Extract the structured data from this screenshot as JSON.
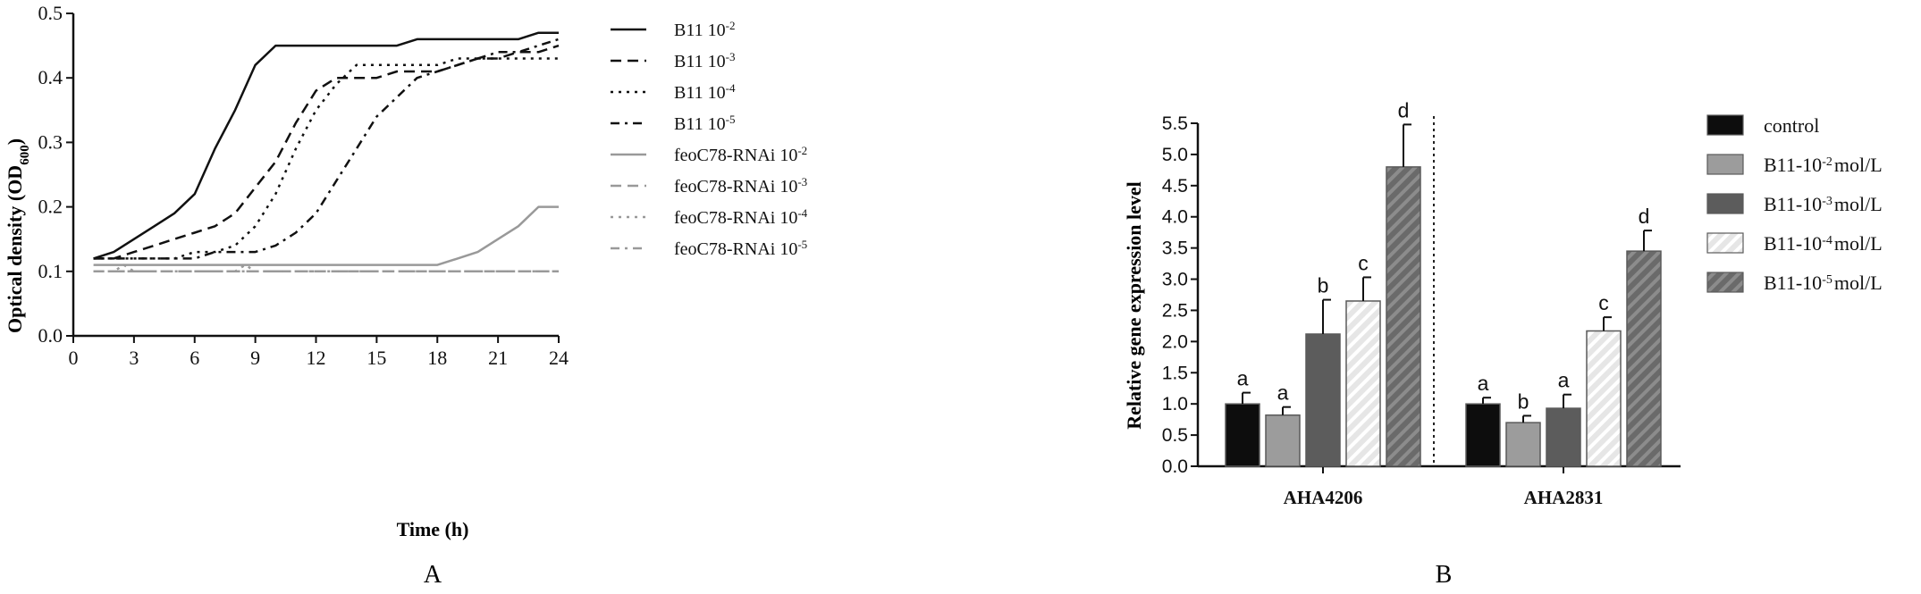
{
  "chart_data": [
    {
      "id": "A",
      "type": "line",
      "panel_label": "A",
      "title": "",
      "xlabel": "Time (h)",
      "ylabel_text": "Optical density (OD",
      "ylabel_sub": "600",
      "ylabel_close": ")",
      "xlim": [
        0,
        24
      ],
      "ylim": [
        0,
        0.5
      ],
      "xticks": [
        0,
        3,
        6,
        9,
        12,
        15,
        18,
        21,
        24
      ],
      "xtick_labels": [
        "0",
        "3",
        "6",
        "9",
        "12",
        "15",
        "18",
        "21",
        "24"
      ],
      "yticks": [
        0,
        0.1,
        0.2,
        0.3,
        0.4,
        0.5
      ],
      "ytick_labels": [
        "0.0",
        "0.1",
        "0.2",
        "0.3",
        "0.4",
        "0.5"
      ],
      "grid": false,
      "legend_position": "right",
      "series": [
        {
          "name": "B11 10-2",
          "label": "B11 10",
          "exp": "-2",
          "color": "#111111",
          "dash": "solid",
          "x": [
            1,
            2,
            3,
            4,
            5,
            6,
            7,
            8,
            9,
            10,
            11,
            12,
            13,
            14,
            15,
            16,
            17,
            18,
            19,
            20,
            21,
            22,
            23,
            24
          ],
          "y": [
            0.12,
            0.13,
            0.15,
            0.17,
            0.19,
            0.22,
            0.29,
            0.35,
            0.42,
            0.45,
            0.45,
            0.45,
            0.45,
            0.45,
            0.45,
            0.45,
            0.46,
            0.46,
            0.46,
            0.46,
            0.46,
            0.46,
            0.47,
            0.47
          ]
        },
        {
          "name": "B11 10-3",
          "label": "B11 10",
          "exp": "-3",
          "color": "#111111",
          "dash": "dash",
          "x": [
            1,
            2,
            3,
            4,
            5,
            6,
            7,
            8,
            9,
            10,
            11,
            12,
            13,
            14,
            15,
            16,
            17,
            18,
            19,
            20,
            21,
            22,
            23,
            24
          ],
          "y": [
            0.12,
            0.12,
            0.13,
            0.14,
            0.15,
            0.16,
            0.17,
            0.19,
            0.23,
            0.27,
            0.33,
            0.38,
            0.4,
            0.4,
            0.4,
            0.41,
            0.41,
            0.41,
            0.42,
            0.43,
            0.43,
            0.44,
            0.44,
            0.45
          ]
        },
        {
          "name": "B11 10-4",
          "label": "B11 10",
          "exp": "-4",
          "color": "#111111",
          "dash": "dot",
          "x": [
            1,
            2,
            3,
            4,
            5,
            6,
            7,
            8,
            9,
            10,
            11,
            12,
            13,
            14,
            15,
            16,
            17,
            18,
            19,
            20,
            21,
            22,
            23,
            24
          ],
          "y": [
            0.12,
            0.12,
            0.12,
            0.12,
            0.12,
            0.13,
            0.13,
            0.14,
            0.17,
            0.22,
            0.29,
            0.35,
            0.39,
            0.42,
            0.42,
            0.42,
            0.42,
            0.42,
            0.43,
            0.43,
            0.43,
            0.43,
            0.43,
            0.43
          ]
        },
        {
          "name": "B11 10-5",
          "label": "B11 10",
          "exp": "-5",
          "color": "#111111",
          "dash": "dashdot",
          "x": [
            1,
            2,
            3,
            4,
            5,
            6,
            7,
            8,
            9,
            10,
            11,
            12,
            13,
            14,
            15,
            16,
            17,
            18,
            19,
            20,
            21,
            22,
            23,
            24
          ],
          "y": [
            0.12,
            0.12,
            0.12,
            0.12,
            0.12,
            0.12,
            0.13,
            0.13,
            0.13,
            0.14,
            0.16,
            0.19,
            0.24,
            0.29,
            0.34,
            0.37,
            0.4,
            0.41,
            0.42,
            0.43,
            0.44,
            0.44,
            0.45,
            0.46
          ]
        },
        {
          "name": "feoC78-RNAi 10-2",
          "label": "feoC78-RNAi 10",
          "exp": "-2",
          "color": "#999999",
          "dash": "solid",
          "x": [
            1,
            2,
            3,
            4,
            5,
            6,
            7,
            8,
            9,
            10,
            11,
            12,
            13,
            14,
            15,
            16,
            17,
            18,
            19,
            20,
            21,
            22,
            23,
            24
          ],
          "y": [
            0.11,
            0.11,
            0.11,
            0.11,
            0.11,
            0.11,
            0.11,
            0.11,
            0.11,
            0.11,
            0.11,
            0.11,
            0.11,
            0.11,
            0.11,
            0.11,
            0.11,
            0.11,
            0.12,
            0.13,
            0.15,
            0.17,
            0.2,
            0.2
          ]
        },
        {
          "name": "feoC78-RNAi 10-3",
          "label": "feoC78-RNAi 10",
          "exp": "-3",
          "color": "#999999",
          "dash": "dash",
          "x": [
            1,
            2,
            3,
            4,
            5,
            6,
            7,
            8,
            9,
            10,
            11,
            12,
            13,
            14,
            15,
            16,
            17,
            18,
            19,
            20,
            21,
            22,
            23,
            24
          ],
          "y": [
            0.1,
            0.1,
            0.1,
            0.1,
            0.1,
            0.1,
            0.1,
            0.1,
            0.1,
            0.1,
            0.1,
            0.1,
            0.1,
            0.1,
            0.1,
            0.1,
            0.1,
            0.1,
            0.1,
            0.1,
            0.1,
            0.1,
            0.1,
            0.1
          ]
        },
        {
          "name": "feoC78-RNAi 10-4",
          "label": "feoC78-RNAi 10",
          "exp": "-4",
          "color": "#999999",
          "dash": "dot",
          "x": [
            1,
            2,
            2.5,
            3,
            4,
            5,
            6,
            7,
            8,
            8.5,
            9,
            10,
            11,
            12,
            13,
            14,
            15,
            16,
            17,
            18,
            19,
            20,
            21,
            22,
            23,
            24
          ],
          "y": [
            0.1,
            0.1,
            0.11,
            0.1,
            0.1,
            0.1,
            0.1,
            0.1,
            0.1,
            0.11,
            0.1,
            0.1,
            0.1,
            0.1,
            0.1,
            0.1,
            0.1,
            0.1,
            0.1,
            0.1,
            0.1,
            0.1,
            0.1,
            0.1,
            0.1,
            0.1
          ]
        },
        {
          "name": "feoC78-RNAi 10-5",
          "label": "feoC78-RNAi 10",
          "exp": "-5",
          "color": "#999999",
          "dash": "dashdot",
          "x": [
            1,
            2,
            3,
            4,
            5,
            6,
            7,
            8,
            9,
            10,
            11,
            12,
            13,
            14,
            15,
            16,
            17,
            18,
            19,
            20,
            21,
            22,
            23,
            24
          ],
          "y": [
            0.1,
            0.1,
            0.1,
            0.1,
            0.1,
            0.1,
            0.1,
            0.1,
            0.1,
            0.1,
            0.1,
            0.1,
            0.1,
            0.1,
            0.1,
            0.1,
            0.1,
            0.1,
            0.1,
            0.1,
            0.1,
            0.1,
            0.1,
            0.1
          ]
        }
      ]
    },
    {
      "id": "B",
      "type": "bar",
      "panel_label": "B",
      "title": "",
      "xlabel": "",
      "ylabel": "Relative gene expression level",
      "ylim": [
        0,
        5.5
      ],
      "yticks": [
        0,
        0.5,
        1,
        1.5,
        2,
        2.5,
        3,
        3.5,
        4,
        4.5,
        5,
        5.5
      ],
      "ytick_labels": [
        "0.0",
        "0.5",
        "1.0",
        "1.5",
        "2.0",
        "2.5",
        "3.0",
        "3.5",
        "4.0",
        "4.5",
        "5.0",
        "5.5"
      ],
      "categories": [
        "AHA4206",
        "AHA2831"
      ],
      "grid": false,
      "legend_position": "right",
      "series": [
        {
          "name": "control",
          "label": "control",
          "exp": "",
          "suffix": "",
          "color": "#0d0d0d",
          "pattern": "solid",
          "values": [
            1.0,
            1.0
          ],
          "errors": [
            0.18,
            0.1
          ],
          "letters": [
            "a",
            "a"
          ]
        },
        {
          "name": "B11-10-2 mol/L",
          "label": "B11-10",
          "exp": "-2",
          "suffix": "mol/L",
          "color": "#9c9c9c",
          "pattern": "solid",
          "values": [
            0.82,
            0.7
          ],
          "errors": [
            0.13,
            0.11
          ],
          "letters": [
            "a",
            "b"
          ]
        },
        {
          "name": "B11-10-3 mol/L",
          "label": "B11-10",
          "exp": "-3",
          "suffix": "mol/L",
          "color": "#5c5c5c",
          "pattern": "solid",
          "values": [
            2.12,
            0.93
          ],
          "errors": [
            0.55,
            0.22
          ],
          "letters": [
            "b",
            "a"
          ]
        },
        {
          "name": "B11-10-4 mol/L",
          "label": "B11-10",
          "exp": "-4",
          "suffix": "mol/L",
          "color": "#e0e0e0",
          "pattern": "hatch-light",
          "values": [
            2.65,
            2.17
          ],
          "errors": [
            0.38,
            0.22
          ],
          "letters": [
            "c",
            "c"
          ]
        },
        {
          "name": "B11-10-5 mol/L",
          "label": "B11-10",
          "exp": "-5",
          "suffix": "mol/L",
          "color": "#6e6e6e",
          "pattern": "hatch-dark",
          "values": [
            4.8,
            3.45
          ],
          "errors": [
            0.68,
            0.33
          ],
          "letters": [
            "d",
            "d"
          ]
        }
      ]
    }
  ]
}
